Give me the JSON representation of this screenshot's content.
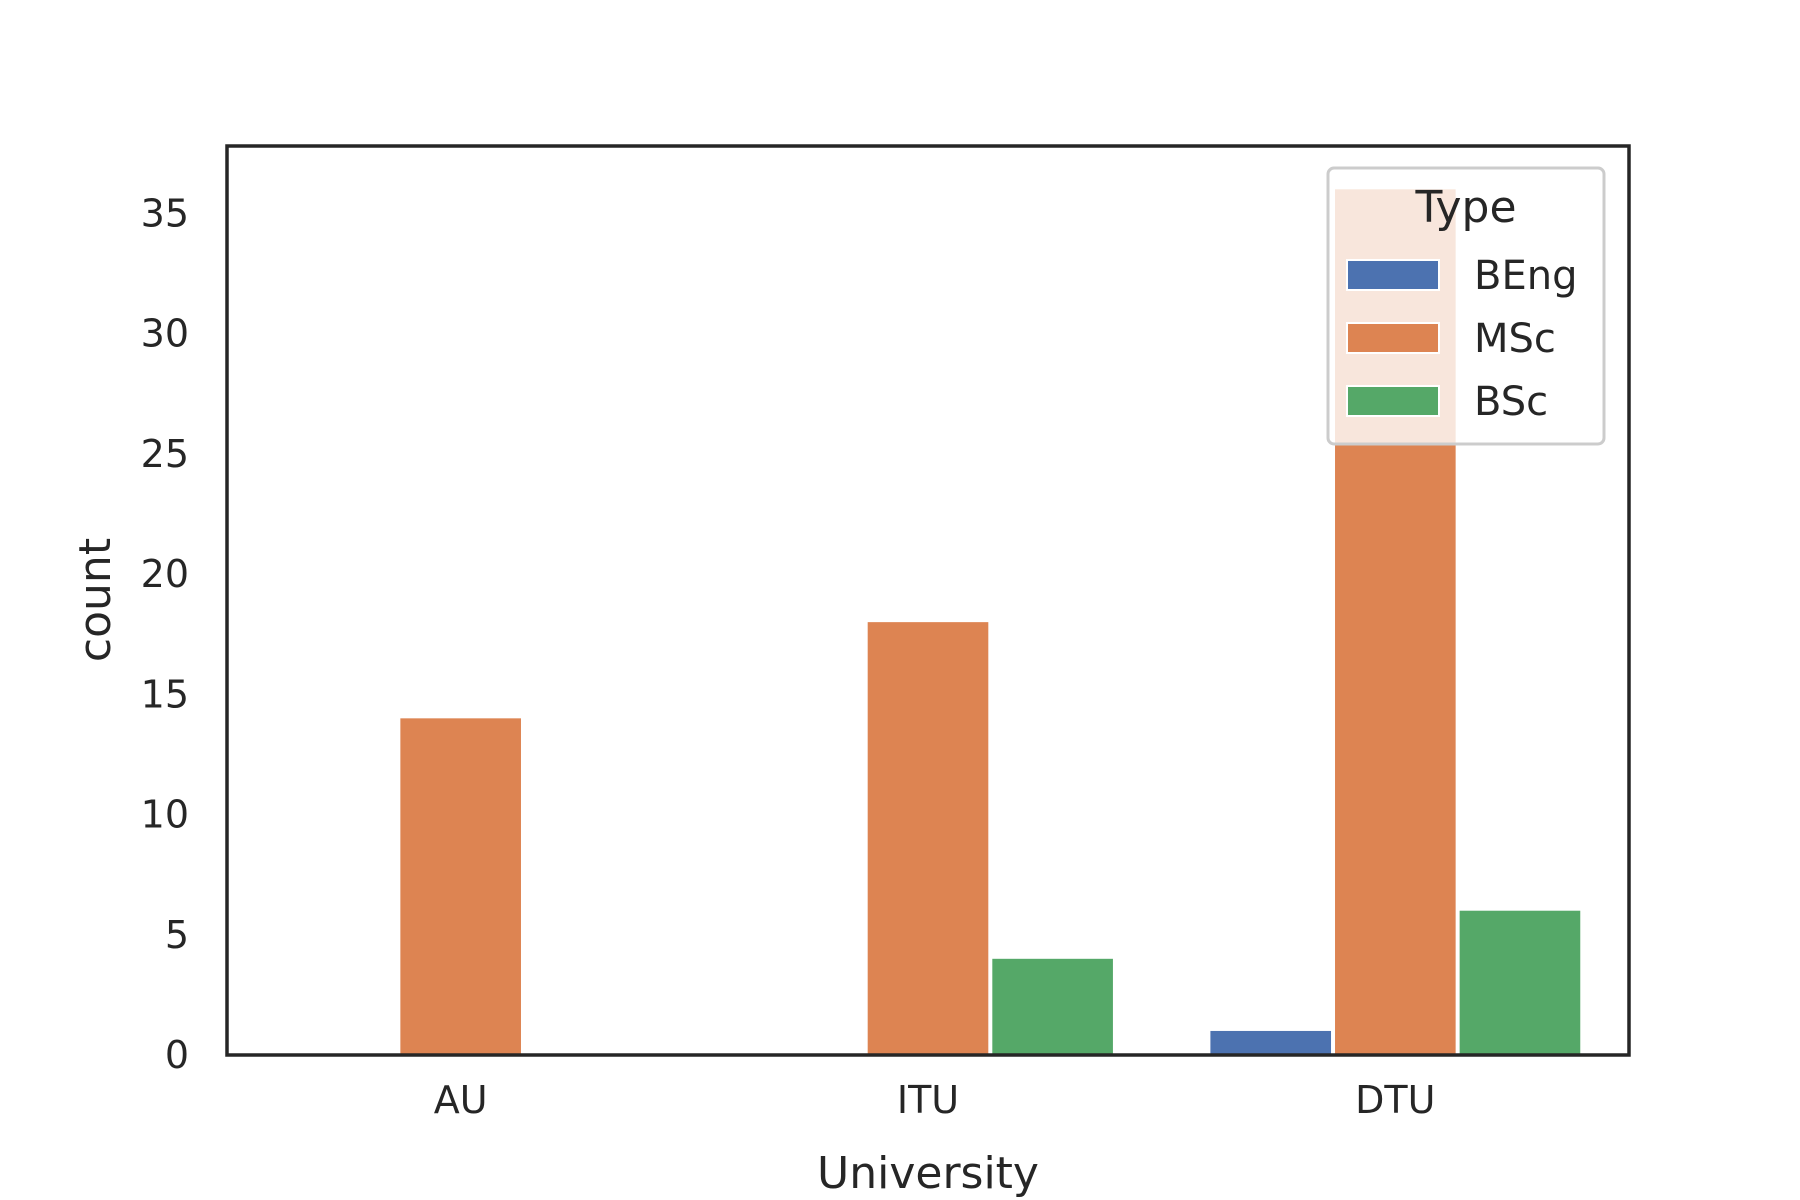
{
  "chart_data": {
    "type": "bar",
    "title": "",
    "xlabel": "University",
    "ylabel": "count",
    "categories": [
      "AU",
      "ITU",
      "DTU"
    ],
    "series": [
      {
        "name": "BEng",
        "color": "#4c72b0",
        "values": [
          0,
          0,
          1
        ]
      },
      {
        "name": "MSc",
        "color": "#dd8452",
        "values": [
          14,
          18,
          36
        ]
      },
      {
        "name": "BSc",
        "color": "#55a868",
        "values": [
          0,
          4,
          6
        ]
      }
    ],
    "ylim": [
      0,
      37.8
    ],
    "yticks": [
      0,
      5,
      10,
      15,
      20,
      25,
      30,
      35
    ],
    "grid": false,
    "legend": {
      "title": "Type",
      "placement": "top-right"
    }
  }
}
